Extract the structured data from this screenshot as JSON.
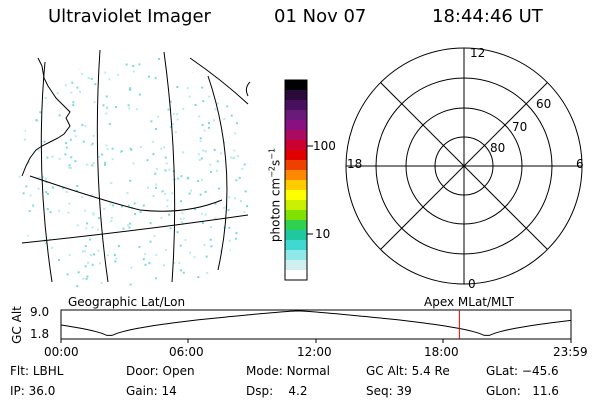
{
  "header": {
    "title": "Ultraviolet Imager",
    "date": "01 Nov 07",
    "time": "18:44:46 UT"
  },
  "colorbar": {
    "label": "photon cm-2s-1",
    "label_base": "photon cm",
    "label_exp1": "−2",
    "label_mid": "s",
    "label_exp2": "−1",
    "ticks": [
      "100",
      "10"
    ],
    "colors": [
      "#000000",
      "#2a0a38",
      "#4a1060",
      "#6a1a78",
      "#881080",
      "#aa0a60",
      "#cc0030",
      "#e00000",
      "#f04000",
      "#ff8800",
      "#ffcc00",
      "#ffff00",
      "#c8f000",
      "#80e000",
      "#30d050",
      "#20c8a0",
      "#40d8d0",
      "#90e8e8",
      "#d0f0f0",
      "#ffffff"
    ]
  },
  "polar": {
    "labels": [
      "12",
      "60",
      "70",
      "80",
      "18",
      "6",
      "0"
    ]
  },
  "timeline": {
    "left_label": "Geographic Lat/Lon",
    "right_label": "Apex  MLat/MLT",
    "axis_label": "GC Alt",
    "y_top": "9.0",
    "y_bottom": "1.8",
    "x_ticks": [
      "00:00",
      "06:00",
      "12:00",
      "18:00",
      "23:59"
    ],
    "marker_time_fraction": 0.7811
  },
  "info": {
    "row1": [
      {
        "label": "Flt:",
        "value": "LBHL"
      },
      {
        "label": "Door:",
        "value": "Open"
      },
      {
        "label": "Mode:",
        "value": "Normal"
      },
      {
        "label": "GC Alt:",
        "value": "5.4 Re"
      },
      {
        "label": "GLat:",
        "value": "−45.6"
      }
    ],
    "row2": [
      {
        "label": "IP:",
        "value": "36.0"
      },
      {
        "label": "Gain:",
        "value": "14"
      },
      {
        "label": "Dsp:",
        "value": "4.2"
      },
      {
        "label": "Seq:",
        "value": "39"
      },
      {
        "label": "GLon:",
        "value": "11.6"
      }
    ]
  },
  "colors": {
    "marker": "#dd0000",
    "noise": "#7fd8d8"
  }
}
